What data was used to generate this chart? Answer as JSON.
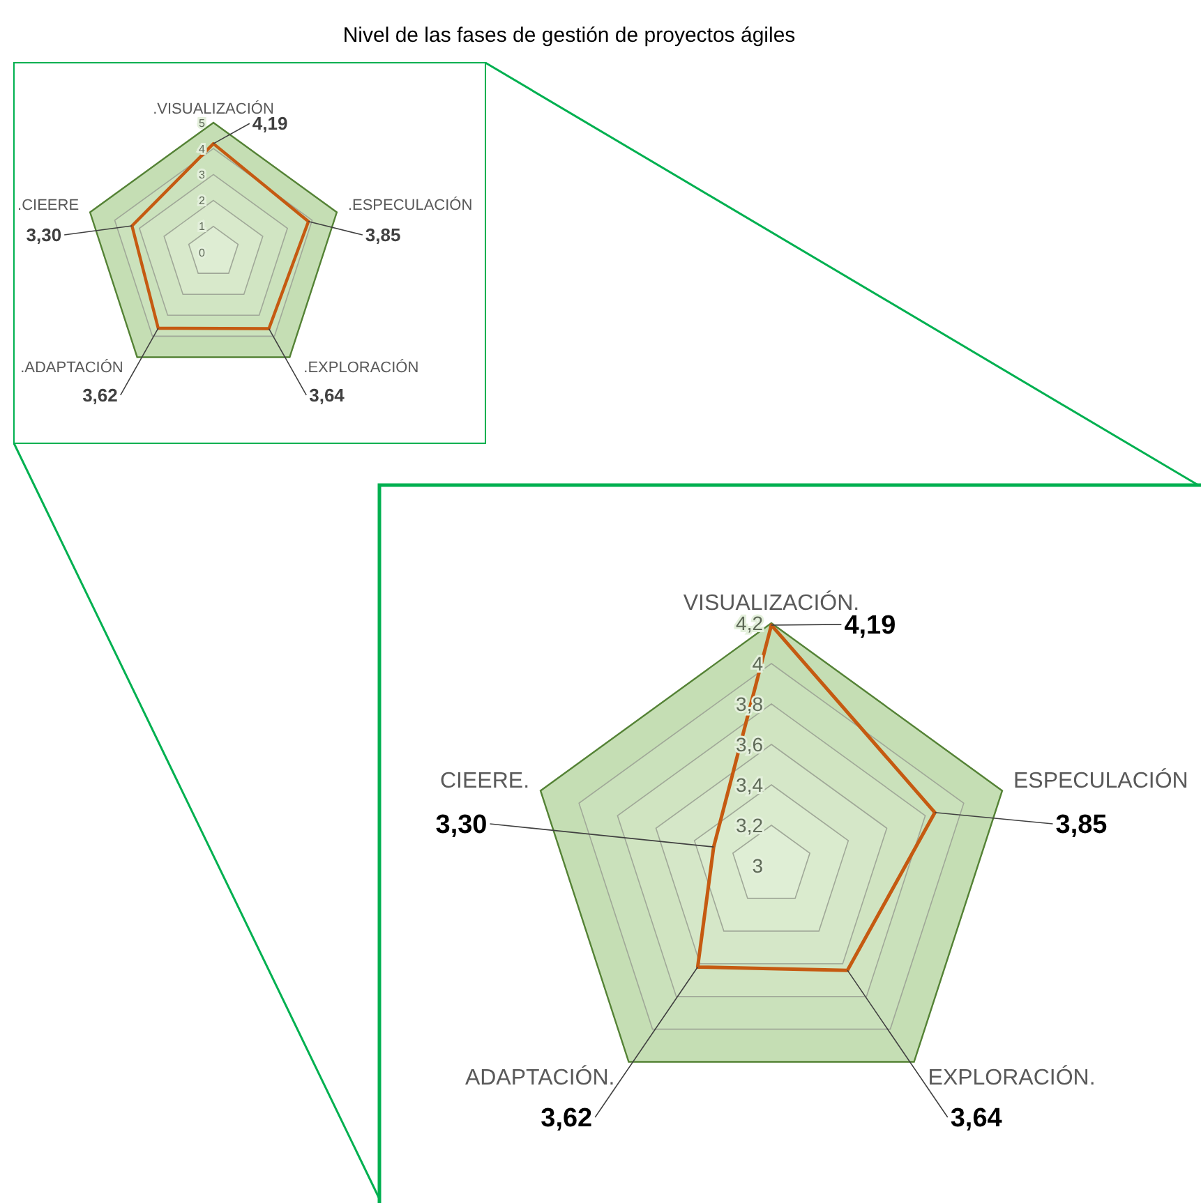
{
  "chart_data": [
    {
      "type": "radar",
      "title": "Nivel de las fases de gestión de proyectos ágiles",
      "categories": [
        ".VISUALIZACIÓN",
        ".ESPECULACIÓN",
        ".EXPLORACIÓN",
        ".ADAPTACIÓN",
        ".CIEERE"
      ],
      "ylim": [
        0,
        5
      ],
      "yticks": [
        0,
        1,
        2,
        3,
        4,
        5
      ],
      "grid": true,
      "series": [
        {
          "color": "#c55a11",
          "values": [
            4.19,
            3.85,
            3.64,
            3.62,
            3.3
          ],
          "value_labels": [
            "4,19",
            "3,85",
            "3,64",
            "3,62",
            "3,30"
          ]
        }
      ]
    },
    {
      "type": "radar",
      "categories": [
        "VISUALIZACIÓN.",
        "ESPECULACIÓN",
        "EXPLORACIÓN.",
        "ADAPTACIÓN.",
        "CIEERE."
      ],
      "ylim": [
        3,
        4.2
      ],
      "yticks": [
        3,
        {
          "value": 3.2,
          "label": "3,2"
        },
        {
          "value": 3.4,
          "label": "3,4"
        },
        {
          "value": 3.6,
          "label": "3,6"
        },
        {
          "value": 3.8,
          "label": "3,8"
        },
        4,
        {
          "value": 4.2,
          "label": "4,2"
        }
      ],
      "grid": true,
      "series": [
        {
          "color": "#c55a11",
          "values": [
            4.19,
            3.85,
            3.64,
            3.62,
            3.3
          ],
          "value_labels": [
            "4,19",
            "3,85",
            "3,64",
            "3,62",
            "3,30"
          ]
        }
      ]
    }
  ]
}
